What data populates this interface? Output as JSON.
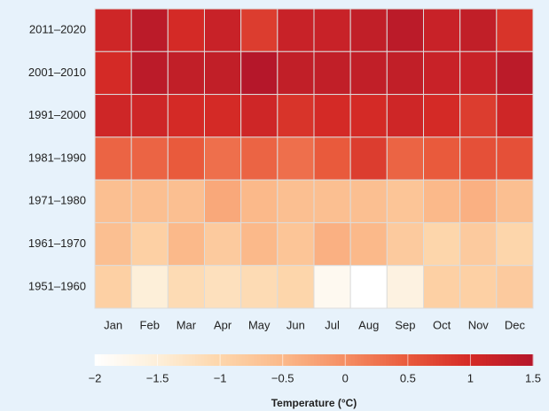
{
  "chart_data": {
    "type": "heatmap",
    "x_categories": [
      "Jan",
      "Feb",
      "Mar",
      "Apr",
      "May",
      "Jun",
      "Jul",
      "Aug",
      "Sep",
      "Oct",
      "Nov",
      "Dec"
    ],
    "y_categories": [
      "2011–2020",
      "2001–2010",
      "1991–2000",
      "1981–1990",
      "1971–1980",
      "1961–1970",
      "1951–1960"
    ],
    "values": [
      [
        1.1,
        1.4,
        1.0,
        1.2,
        0.8,
        1.2,
        1.2,
        1.3,
        1.4,
        1.2,
        1.3,
        0.9
      ],
      [
        1.0,
        1.4,
        1.3,
        1.3,
        1.5,
        1.3,
        1.3,
        1.3,
        1.3,
        1.2,
        1.2,
        1.4
      ],
      [
        1.1,
        1.1,
        1.0,
        1.0,
        1.1,
        0.9,
        1.0,
        1.0,
        1.1,
        1.0,
        0.8,
        1.1
      ],
      [
        0.4,
        0.4,
        0.5,
        0.3,
        0.4,
        0.3,
        0.5,
        0.8,
        0.4,
        0.5,
        0.6,
        0.6
      ],
      [
        -0.6,
        -0.6,
        -0.6,
        -0.3,
        -0.5,
        -0.6,
        -0.6,
        -0.6,
        -0.7,
        -0.5,
        -0.4,
        -0.6
      ],
      [
        -0.6,
        -0.9,
        -0.5,
        -0.8,
        -0.5,
        -0.7,
        -0.4,
        -0.5,
        -0.8,
        -1.0,
        -0.8,
        -1.0
      ],
      [
        -0.9,
        -1.5,
        -1.1,
        -1.2,
        -1.1,
        -1.0,
        -1.8,
        -2.0,
        -1.6,
        -0.9,
        -0.9,
        -0.8
      ]
    ],
    "colormap": [
      "#ffffff",
      "#fdefd9",
      "#fdd6ab",
      "#fbb98a",
      "#f58e63",
      "#e95a3c",
      "#d42a26",
      "#b5172a"
    ],
    "clim": [
      -2,
      1.5
    ],
    "colorbar_ticks": [
      {
        "value": -2,
        "label": "−2"
      },
      {
        "value": -1.5,
        "label": "−1.5"
      },
      {
        "value": -1,
        "label": "−1"
      },
      {
        "value": -0.5,
        "label": "−0.5"
      },
      0,
      0.5,
      1,
      1.5
    ],
    "colorbar_label": "Temperature (°C)"
  }
}
